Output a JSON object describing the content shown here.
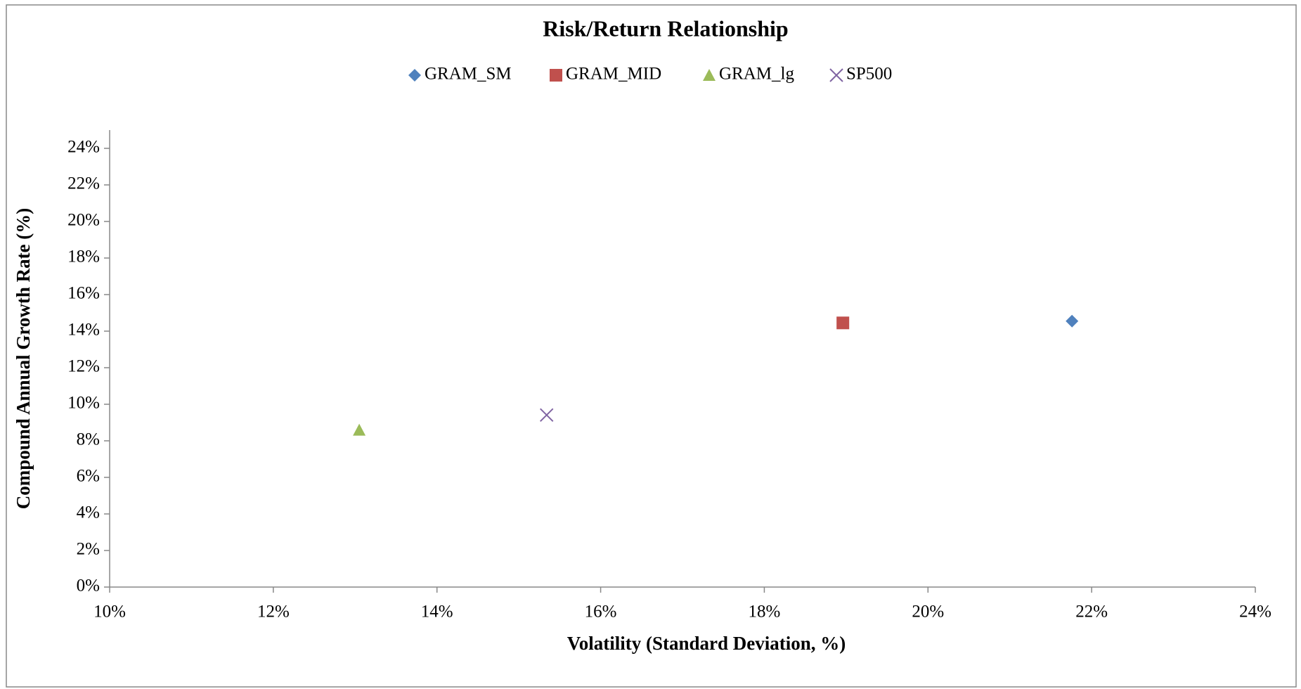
{
  "chart_data": {
    "type": "scatter",
    "title": "Risk/Return Relationship",
    "x_label": "Volatility (Standard Deviation, %)",
    "y_label": "Compound Annual Growth Rate (%)",
    "xlim": [
      10,
      24
    ],
    "ylim": [
      0,
      25
    ],
    "xticks": [
      {
        "value": 10,
        "label": "10%"
      },
      {
        "value": 12,
        "label": "12%"
      },
      {
        "value": 14,
        "label": "14%"
      },
      {
        "value": 16,
        "label": "16%"
      },
      {
        "value": 18,
        "label": "18%"
      },
      {
        "value": 20,
        "label": "20%"
      },
      {
        "value": 22,
        "label": "22%"
      },
      {
        "value": 24,
        "label": "24%"
      }
    ],
    "yticks": [
      {
        "value": 0,
        "label": "0%"
      },
      {
        "value": 2,
        "label": "2%"
      },
      {
        "value": 4,
        "label": "4%"
      },
      {
        "value": 6,
        "label": "6%"
      },
      {
        "value": 8,
        "label": "8%"
      },
      {
        "value": 10,
        "label": "10%"
      },
      {
        "value": 12,
        "label": "12%"
      },
      {
        "value": 14,
        "label": "14%"
      },
      {
        "value": 16,
        "label": "16%"
      },
      {
        "value": 18,
        "label": "18%"
      },
      {
        "value": 20,
        "label": "20%"
      },
      {
        "value": 22,
        "label": "22%"
      },
      {
        "value": 24,
        "label": "24%"
      }
    ],
    "grid": false,
    "legend": "top",
    "series": [
      {
        "name": "GRAM_SM",
        "color": "#4f81bd",
        "marker": "diamond",
        "x": [
          21.76
        ],
        "values": [
          14.55
        ]
      },
      {
        "name": "GRAM_MID",
        "color": "#c0504d",
        "marker": "square",
        "x": [
          18.96
        ],
        "values": [
          14.45
        ]
      },
      {
        "name": "GRAM_lg",
        "color": "#9bbb59",
        "marker": "triangle",
        "x": [
          13.05
        ],
        "values": [
          8.59
        ]
      },
      {
        "name": "SP500",
        "color": "#8064a2",
        "marker": "x",
        "x": [
          15.34
        ],
        "values": [
          9.41
        ]
      }
    ]
  }
}
